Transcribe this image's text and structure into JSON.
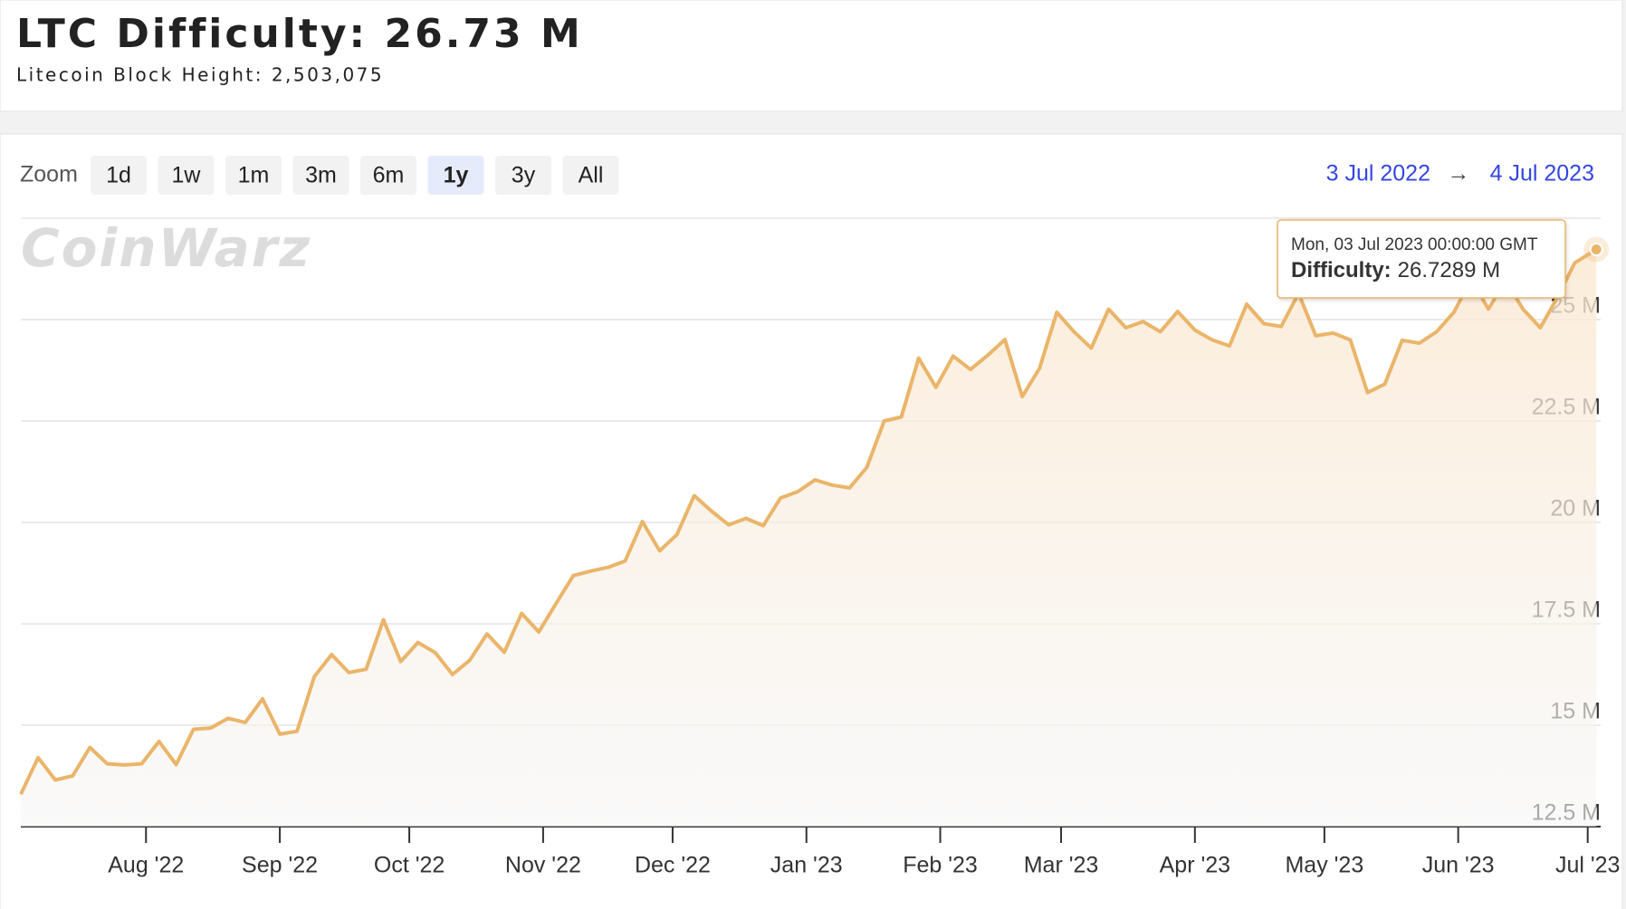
{
  "header": {
    "title": "LTC Difficulty: 26.73 M",
    "subtitle": "Litecoin Block Height: 2,503,075"
  },
  "toolbar": {
    "zoom_label": "Zoom",
    "zoom_buttons": [
      "1d",
      "1w",
      "1m",
      "3m",
      "6m",
      "1y",
      "3y",
      "All"
    ],
    "selected": "1y",
    "range_from": "3 Jul 2022",
    "range_arrow": "→",
    "range_to": "4 Jul 2023"
  },
  "chart_data": {
    "type": "area",
    "watermark": "CoinWarz",
    "color": "#eab56a",
    "x": [
      "2022-07-03",
      "2022-07-07",
      "2022-07-11",
      "2022-07-15",
      "2022-07-19",
      "2022-07-23",
      "2022-07-27",
      "2022-07-31",
      "2022-08-04",
      "2022-08-08",
      "2022-08-12",
      "2022-08-16",
      "2022-08-20",
      "2022-08-24",
      "2022-08-28",
      "2022-09-01",
      "2022-09-05",
      "2022-09-09",
      "2022-09-13",
      "2022-09-17",
      "2022-09-21",
      "2022-09-25",
      "2022-09-29",
      "2022-10-03",
      "2022-10-07",
      "2022-10-11",
      "2022-10-15",
      "2022-10-19",
      "2022-10-23",
      "2022-10-27",
      "2022-10-31",
      "2022-11-04",
      "2022-11-08",
      "2022-11-12",
      "2022-11-16",
      "2022-11-20",
      "2022-11-24",
      "2022-11-28",
      "2022-12-02",
      "2022-12-06",
      "2022-12-10",
      "2022-12-14",
      "2022-12-18",
      "2022-12-22",
      "2022-12-26",
      "2022-12-30",
      "2023-01-03",
      "2023-01-07",
      "2023-01-11",
      "2023-01-15",
      "2023-01-19",
      "2023-01-23",
      "2023-01-27",
      "2023-01-31",
      "2023-02-04",
      "2023-02-08",
      "2023-02-12",
      "2023-02-16",
      "2023-02-20",
      "2023-02-24",
      "2023-02-28",
      "2023-03-04",
      "2023-03-08",
      "2023-03-12",
      "2023-03-16",
      "2023-03-20",
      "2023-03-24",
      "2023-03-28",
      "2023-04-01",
      "2023-04-05",
      "2023-04-09",
      "2023-04-13",
      "2023-04-17",
      "2023-04-21",
      "2023-04-25",
      "2023-04-29",
      "2023-05-03",
      "2023-05-07",
      "2023-05-11",
      "2023-05-15",
      "2023-05-19",
      "2023-05-23",
      "2023-05-27",
      "2023-05-31",
      "2023-06-04",
      "2023-06-08",
      "2023-06-12",
      "2023-06-16",
      "2023-06-20",
      "2023-06-24",
      "2023-06-28",
      "2023-07-03"
    ],
    "values": [
      13.3,
      14.2,
      13.65,
      13.75,
      14.45,
      14.05,
      14.02,
      14.05,
      14.6,
      14.03,
      14.9,
      14.93,
      15.17,
      15.07,
      15.65,
      14.78,
      14.85,
      16.2,
      16.74,
      16.3,
      16.38,
      17.6,
      16.57,
      17.04,
      16.79,
      16.25,
      16.6,
      17.25,
      16.8,
      17.76,
      17.3,
      18.0,
      18.69,
      18.8,
      18.89,
      19.05,
      20.02,
      19.3,
      19.7,
      20.66,
      20.28,
      19.94,
      20.1,
      19.92,
      20.6,
      20.76,
      21.05,
      20.92,
      20.85,
      21.36,
      22.5,
      22.6,
      24.05,
      23.33,
      24.1,
      23.77,
      24.12,
      24.51,
      23.1,
      23.8,
      25.18,
      24.7,
      24.3,
      25.26,
      24.8,
      24.95,
      24.7,
      25.2,
      24.74,
      24.5,
      24.35,
      25.38,
      24.9,
      24.83,
      25.65,
      24.6,
      24.67,
      24.5,
      23.2,
      23.41,
      24.49,
      24.42,
      24.7,
      25.18,
      26.0,
      25.26,
      25.96,
      25.26,
      24.8,
      25.55,
      26.4,
      26.7289
    ],
    "xlim": [
      "2022-07-03",
      "2023-07-04"
    ],
    "xticks": [
      {
        "value": "2022-08-01",
        "label": "Aug '22"
      },
      {
        "value": "2022-09-01",
        "label": "Sep '22"
      },
      {
        "value": "2022-10-01",
        "label": "Oct '22"
      },
      {
        "value": "2022-11-01",
        "label": "Nov '22"
      },
      {
        "value": "2022-12-01",
        "label": "Dec '22"
      },
      {
        "value": "2023-01-01",
        "label": "Jan '23"
      },
      {
        "value": "2023-02-01",
        "label": "Feb '23"
      },
      {
        "value": "2023-03-01",
        "label": "Mar '23"
      },
      {
        "value": "2023-04-01",
        "label": "Apr '23"
      },
      {
        "value": "2023-05-01",
        "label": "May '23"
      },
      {
        "value": "2023-06-01",
        "label": "Jun '23"
      },
      {
        "value": "2023-07-01",
        "label": "Jul '23"
      }
    ],
    "ylim": [
      12.5,
      27.5
    ],
    "yticks": [
      {
        "value": 12.5,
        "label": "12.5 M"
      },
      {
        "value": 15,
        "label": "15 M"
      },
      {
        "value": 17.5,
        "label": "17.5 M"
      },
      {
        "value": 20,
        "label": "20 M"
      },
      {
        "value": 22.5,
        "label": "22.5 M"
      },
      {
        "value": 25,
        "label": "25 M"
      }
    ],
    "grid": true,
    "tooltip": {
      "date": "Mon, 03 Jul 2023 00:00:00 GMT",
      "label": "Difficulty:",
      "value": "26.7289 M"
    }
  }
}
